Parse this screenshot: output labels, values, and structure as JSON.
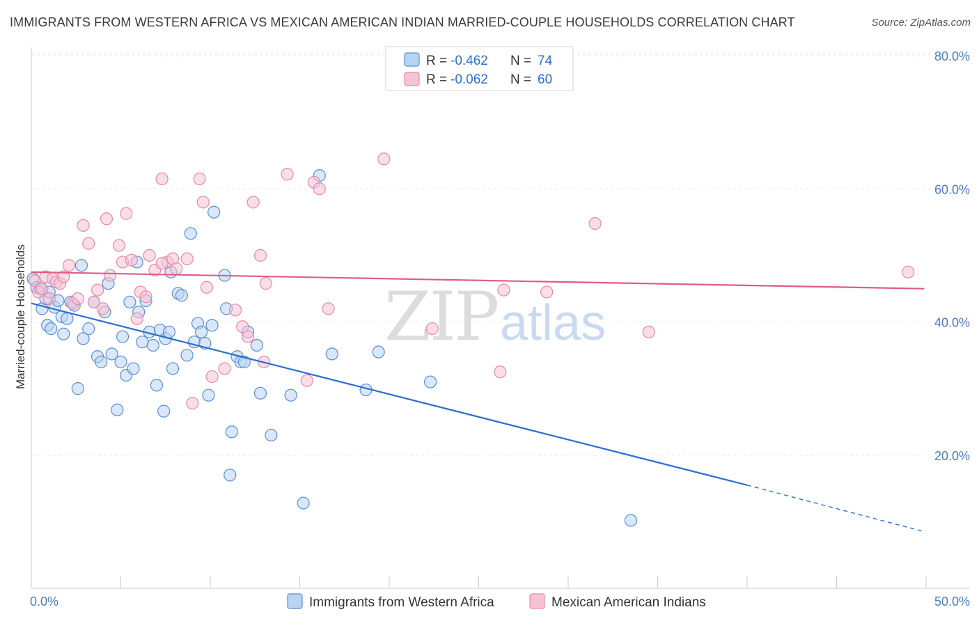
{
  "title": "IMMIGRANTS FROM WESTERN AFRICA VS MEXICAN AMERICAN INDIAN MARRIED-COUPLE HOUSEHOLDS CORRELATION CHART",
  "source": "Source: ZipAtlas.com",
  "watermark": {
    "zip": "ZIP",
    "atlas": "atlas"
  },
  "colors": {
    "blue_fill": "#b9d3f2",
    "blue_stroke": "#5a8fd6",
    "blue_line": "#2f6fcf",
    "pink_fill": "#f6c3d3",
    "pink_stroke": "#e889a8",
    "pink_line": "#e05b8a",
    "grid": "#e6e6e6",
    "tick_text": "#4a7cc9"
  },
  "legend": {
    "rows": [
      {
        "r_label": "R = ",
        "r_value": "-0.462",
        "n_label": "N = ",
        "n_value": "74"
      },
      {
        "r_label": "R = ",
        "r_value": "-0.062",
        "n_label": "N = ",
        "n_value": "60"
      }
    ]
  },
  "chart_data": {
    "type": "scatter",
    "title": "IMMIGRANTS FROM WESTERN AFRICA VS MEXICAN AMERICAN INDIAN MARRIED-COUPLE HOUSEHOLDS CORRELATION CHART",
    "xlabel": "",
    "ylabel": "Married-couple Households",
    "xlim": [
      0,
      50
    ],
    "ylim": [
      0,
      80
    ],
    "x_tick_labels": [
      "0.0%",
      "50.0%"
    ],
    "y_ticks": [
      20,
      40,
      60,
      80
    ],
    "y_tick_labels": [
      "20.0%",
      "40.0%",
      "60.0%",
      "80.0%"
    ],
    "grid": true,
    "legend_placement": "top-center",
    "series": [
      {
        "name": "Immigrants from Western Africa",
        "color": "#5a8fd6",
        "trend": {
          "x": [
            0,
            40
          ],
          "y": [
            42.8,
            15.5
          ],
          "dashed_to_x": 49.9,
          "dashed_to_y": 8.5
        },
        "points": [
          [
            0.1,
            46.5
          ],
          [
            0.3,
            45.2
          ],
          [
            0.5,
            45.0
          ],
          [
            0.6,
            42.0
          ],
          [
            0.8,
            43.5
          ],
          [
            0.9,
            39.5
          ],
          [
            1.1,
            39.0
          ],
          [
            1.3,
            42.2
          ],
          [
            1.5,
            43.2
          ],
          [
            1.7,
            40.8
          ],
          [
            1.8,
            38.2
          ],
          [
            2.0,
            40.5
          ],
          [
            2.2,
            43.0
          ],
          [
            2.4,
            42.5
          ],
          [
            2.8,
            48.5
          ],
          [
            2.9,
            37.5
          ],
          [
            3.2,
            39.0
          ],
          [
            3.5,
            43.0
          ],
          [
            3.7,
            34.8
          ],
          [
            3.9,
            34.0
          ],
          [
            4.1,
            41.5
          ],
          [
            4.3,
            45.8
          ],
          [
            4.5,
            35.2
          ],
          [
            4.8,
            26.8
          ],
          [
            5.0,
            34.0
          ],
          [
            5.1,
            37.8
          ],
          [
            5.3,
            32.0
          ],
          [
            5.5,
            43.0
          ],
          [
            5.7,
            33.0
          ],
          [
            5.9,
            49.0
          ],
          [
            6.2,
            37.0
          ],
          [
            6.4,
            43.2
          ],
          [
            6.6,
            38.5
          ],
          [
            6.8,
            36.5
          ],
          [
            7.0,
            30.5
          ],
          [
            7.2,
            38.8
          ],
          [
            7.4,
            26.6
          ],
          [
            7.5,
            37.5
          ],
          [
            7.7,
            38.5
          ],
          [
            7.8,
            47.5
          ],
          [
            7.9,
            33.0
          ],
          [
            8.2,
            44.3
          ],
          [
            8.4,
            44.0
          ],
          [
            8.7,
            35.0
          ],
          [
            8.9,
            53.3
          ],
          [
            9.1,
            37.0
          ],
          [
            9.3,
            39.8
          ],
          [
            9.5,
            38.5
          ],
          [
            9.7,
            36.8
          ],
          [
            9.9,
            29.0
          ],
          [
            10.1,
            39.5
          ],
          [
            10.2,
            56.5
          ],
          [
            10.8,
            47.0
          ],
          [
            10.9,
            42.0
          ],
          [
            11.1,
            17.0
          ],
          [
            11.2,
            23.5
          ],
          [
            11.5,
            34.8
          ],
          [
            11.7,
            34.0
          ],
          [
            11.9,
            34.0
          ],
          [
            12.1,
            38.5
          ],
          [
            12.6,
            36.5
          ],
          [
            12.8,
            29.3
          ],
          [
            13.4,
            23.0
          ],
          [
            14.5,
            29.0
          ],
          [
            15.2,
            12.8
          ],
          [
            16.1,
            62.0
          ],
          [
            16.8,
            35.2
          ],
          [
            18.7,
            29.8
          ],
          [
            19.4,
            35.5
          ],
          [
            22.3,
            31.0
          ],
          [
            33.5,
            10.2
          ],
          [
            2.6,
            30.0
          ],
          [
            1.0,
            44.5
          ],
          [
            6.0,
            41.5
          ]
        ]
      },
      {
        "name": "Mexican American Indians",
        "color": "#e889a8",
        "trend": {
          "x": [
            0,
            49.9
          ],
          "y": [
            47.5,
            45.0
          ]
        },
        "points": [
          [
            0.2,
            46.2
          ],
          [
            0.4,
            44.5
          ],
          [
            0.6,
            45.0
          ],
          [
            0.8,
            46.8
          ],
          [
            1.0,
            43.5
          ],
          [
            1.2,
            46.5
          ],
          [
            1.4,
            46.0
          ],
          [
            1.6,
            45.8
          ],
          [
            1.8,
            46.8
          ],
          [
            2.1,
            48.5
          ],
          [
            2.3,
            42.8
          ],
          [
            2.6,
            43.5
          ],
          [
            2.9,
            54.5
          ],
          [
            3.2,
            51.8
          ],
          [
            3.5,
            43.0
          ],
          [
            3.7,
            44.8
          ],
          [
            4.0,
            42.0
          ],
          [
            4.2,
            55.5
          ],
          [
            4.4,
            47.0
          ],
          [
            4.9,
            51.5
          ],
          [
            5.1,
            49.0
          ],
          [
            5.3,
            56.3
          ],
          [
            5.6,
            49.3
          ],
          [
            5.9,
            40.5
          ],
          [
            6.1,
            44.5
          ],
          [
            6.4,
            43.8
          ],
          [
            6.6,
            50.0
          ],
          [
            6.9,
            47.8
          ],
          [
            7.3,
            61.5
          ],
          [
            7.6,
            49.0
          ],
          [
            7.9,
            49.5
          ],
          [
            8.1,
            48.0
          ],
          [
            8.7,
            49.5
          ],
          [
            9.0,
            27.8
          ],
          [
            9.4,
            61.5
          ],
          [
            9.6,
            58.0
          ],
          [
            9.8,
            45.2
          ],
          [
            10.1,
            31.8
          ],
          [
            10.8,
            33.0
          ],
          [
            11.4,
            41.8
          ],
          [
            11.8,
            39.3
          ],
          [
            12.1,
            37.8
          ],
          [
            12.4,
            58.0
          ],
          [
            12.8,
            50.0
          ],
          [
            13.0,
            34.0
          ],
          [
            13.1,
            45.8
          ],
          [
            14.3,
            62.2
          ],
          [
            15.4,
            31.2
          ],
          [
            15.8,
            61.0
          ],
          [
            16.1,
            60.0
          ],
          [
            16.6,
            42.0
          ],
          [
            19.7,
            64.5
          ],
          [
            22.4,
            39.0
          ],
          [
            26.2,
            32.5
          ],
          [
            26.4,
            44.8
          ],
          [
            28.8,
            44.5
          ],
          [
            31.5,
            54.8
          ],
          [
            34.5,
            38.5
          ],
          [
            49.0,
            47.5
          ],
          [
            7.3,
            48.8
          ]
        ]
      }
    ]
  },
  "bottom_legend": {
    "items": [
      "Immigrants from Western Africa",
      "Mexican American Indians"
    ]
  }
}
